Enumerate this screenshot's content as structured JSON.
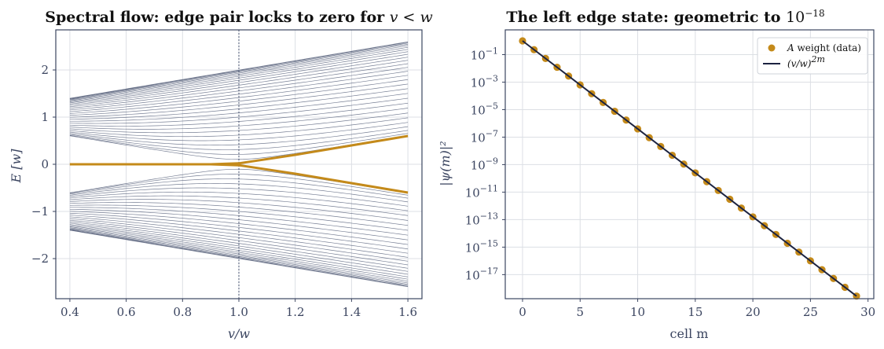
{
  "colors": {
    "bulk": "#4a5470",
    "edge": "#c48a1a",
    "fit": "#1c2340",
    "grid": "#dcdfe4",
    "axis": "#3b4560",
    "vline": "#4a5470"
  },
  "chart_data": [
    {
      "type": "line",
      "title_main": "Spectral flow: edge pair locks to zero for ",
      "title_math": "v < w",
      "xlabel": "v/w",
      "ylabel": "E  [w]",
      "xlim": [
        0.35,
        1.65
      ],
      "ylim": [
        -2.85,
        2.85
      ],
      "xticks": [
        0.4,
        0.6,
        0.8,
        1.0,
        1.2,
        1.4,
        1.6
      ],
      "xtick_labels": [
        "0.4",
        "0.6",
        "0.8",
        "1.0",
        "1.2",
        "1.4",
        "1.6"
      ],
      "yticks": [
        -2,
        -1,
        0,
        1,
        2
      ],
      "ytick_labels": [
        "−2",
        "−1",
        "0",
        "1",
        "2"
      ],
      "v_range": [
        0.4,
        1.6
      ],
      "num_cells": 30,
      "vertical_line_x": 1.0,
      "grid": true,
      "series": [
        {
          "role": "bulk bands",
          "description": "bulk energies ±|v + w·e^{ik}| for 29 bulk momenta"
        },
        {
          "role": "edge pair",
          "x": [
            0.4,
            0.9,
            1.0,
            1.2,
            1.4,
            1.6
          ],
          "y_positive": [
            0.0,
            0.0,
            0.02,
            0.2,
            0.4,
            0.6
          ],
          "y_negative": [
            0.0,
            0.0,
            -0.02,
            -0.2,
            -0.4,
            -0.6
          ]
        }
      ]
    },
    {
      "type": "scatter",
      "title_main": "The left edge state: geometric to ",
      "title_base": "10",
      "title_exp": "−18",
      "xlabel": "cell m",
      "ylabel": "|ψ(m)|²",
      "xlim": [
        -1.5,
        30.5
      ],
      "ylim_log10": [
        -18.75,
        0.8
      ],
      "log_y": true,
      "xticks": [
        0,
        5,
        10,
        15,
        20,
        25,
        30
      ],
      "xtick_labels": [
        "0",
        "5",
        "10",
        "15",
        "20",
        "25",
        "30"
      ],
      "ytick_exponents": [
        -1,
        -3,
        -5,
        -7,
        -9,
        -11,
        -13,
        -15,
        -17
      ],
      "ytick_exponent_labels": [
        "−1",
        "−3",
        "−5",
        "−7",
        "−9",
        "−11",
        "−13",
        "−15",
        "−17"
      ],
      "ytick_base": "10",
      "grid": true,
      "legend_position": "top-right",
      "series": [
        {
          "name": "A weight (data)",
          "kind": "points",
          "x": [
            0,
            1,
            2,
            3,
            4,
            5,
            6,
            7,
            8,
            9,
            10,
            11,
            12,
            13,
            14,
            15,
            16,
            17,
            18,
            19,
            20,
            21,
            22,
            23,
            24,
            25,
            26,
            27,
            28,
            29
          ],
          "log10_y": [
            0.0,
            -0.64,
            -1.28,
            -1.92,
            -2.56,
            -3.2,
            -3.84,
            -4.48,
            -5.12,
            -5.76,
            -6.4,
            -7.04,
            -7.68,
            -8.32,
            -8.96,
            -9.6,
            -10.24,
            -10.88,
            -11.52,
            -12.16,
            -12.8,
            -13.44,
            -14.08,
            -14.72,
            -15.36,
            -16.0,
            -16.64,
            -17.28,
            -17.92,
            -18.56
          ]
        },
        {
          "name": "(v/w)^{2m}",
          "kind": "line",
          "x": [
            0,
            29
          ],
          "log10_y": [
            0.0,
            -18.56
          ]
        }
      ],
      "legend": [
        {
          "italic": "A",
          "text": " weight (data)"
        },
        {
          "text": "(v/w)",
          "sup": "2m"
        }
      ]
    }
  ]
}
